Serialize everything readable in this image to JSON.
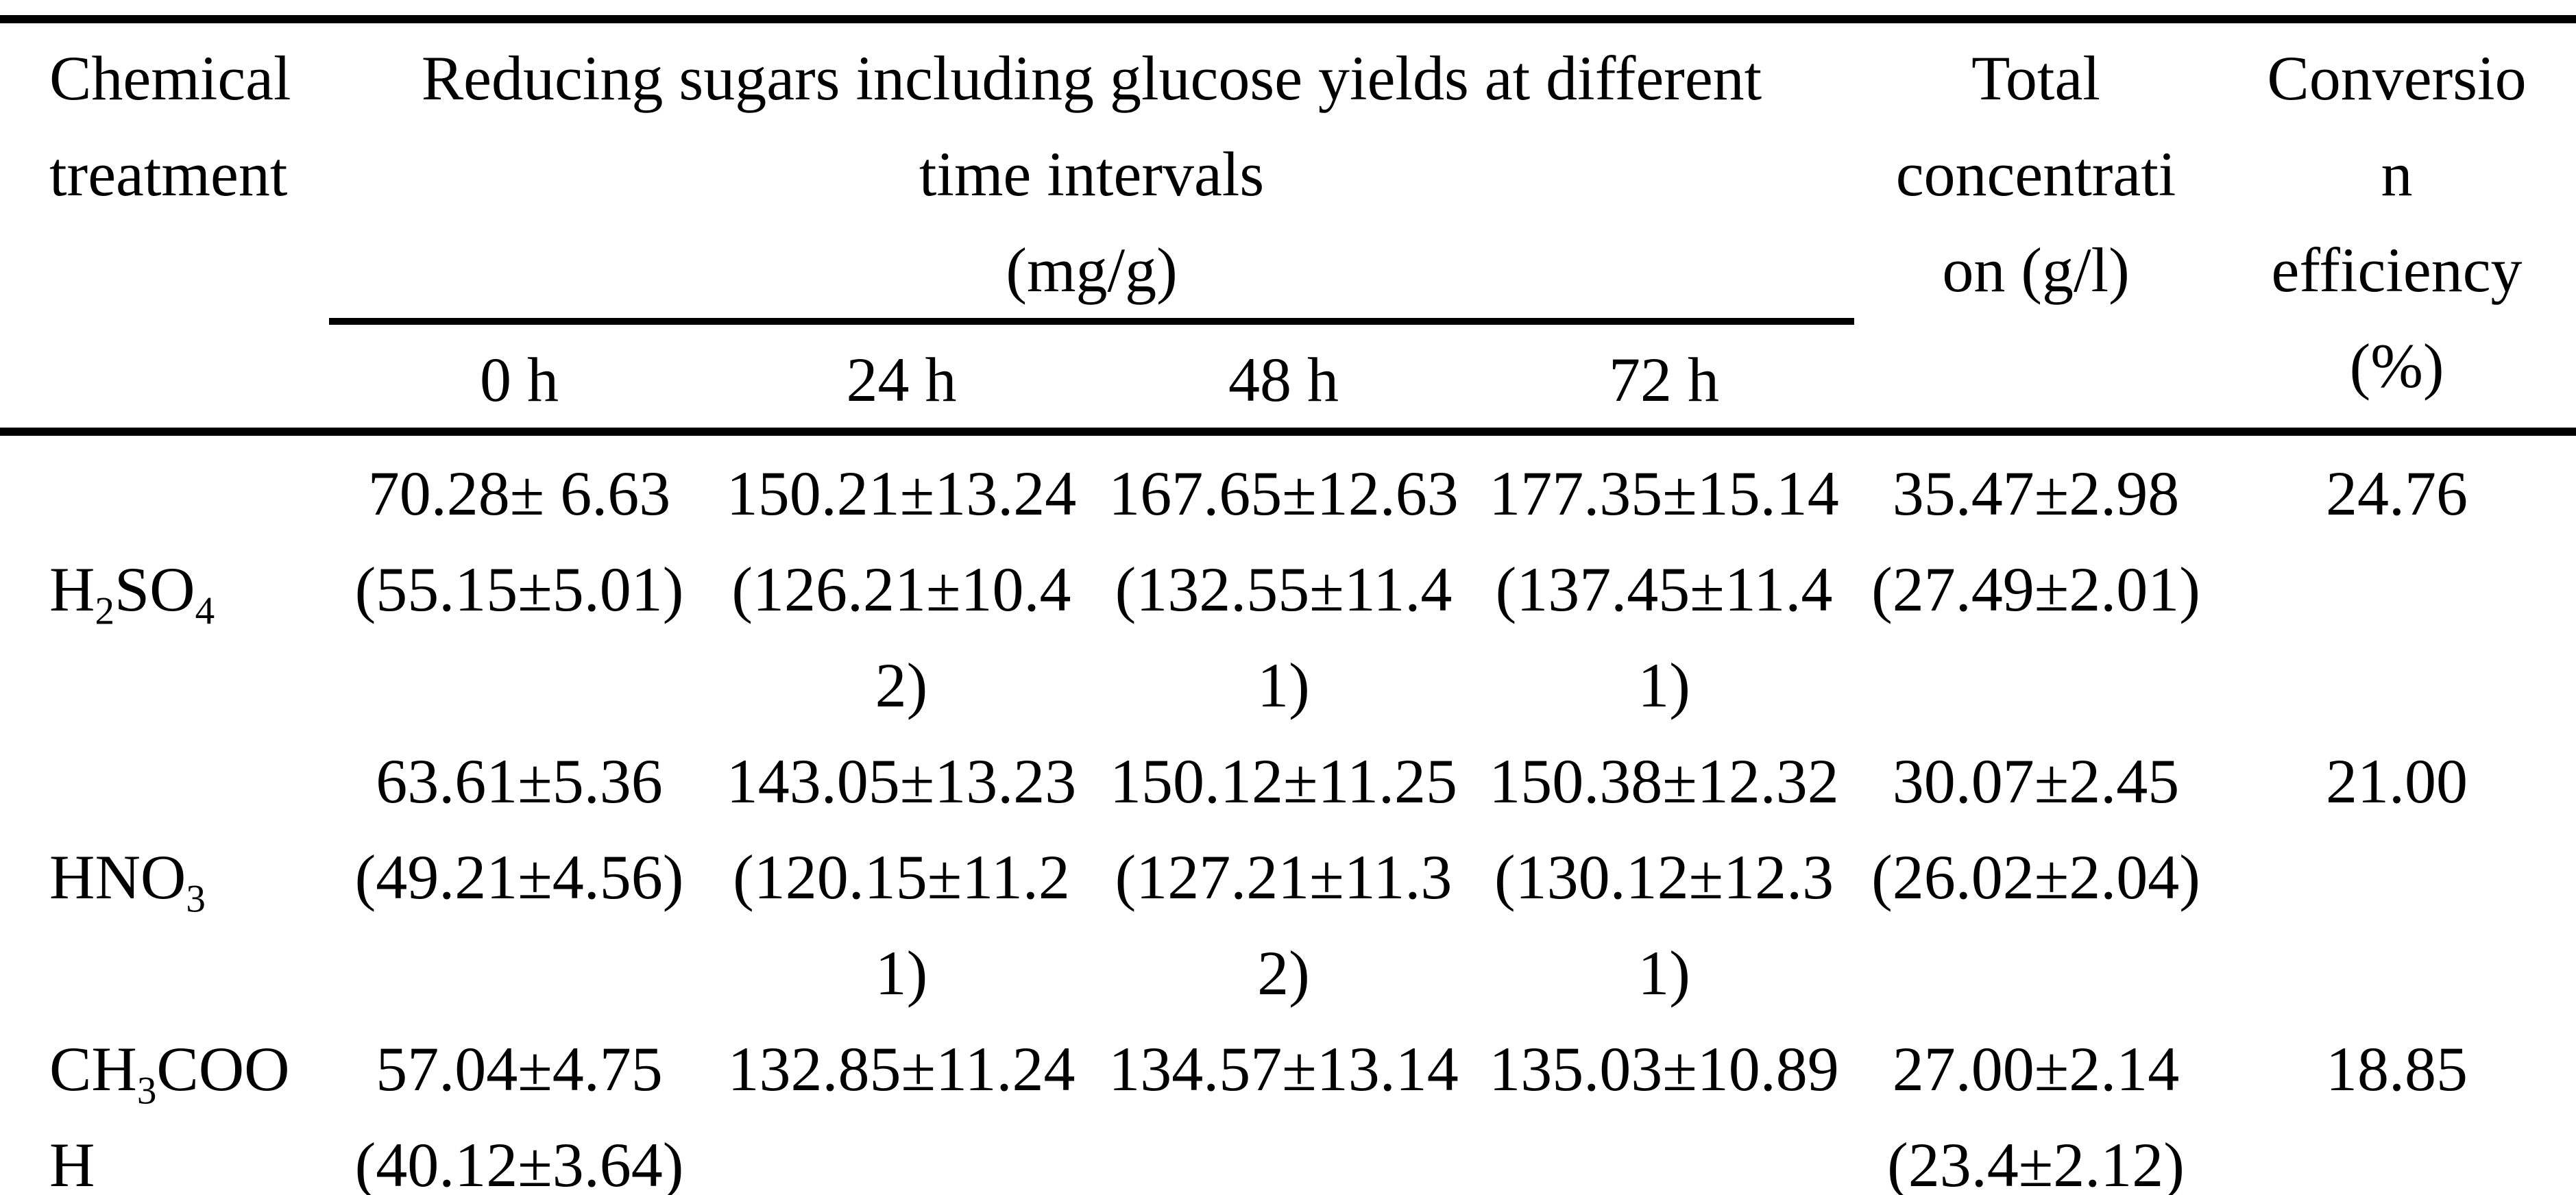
{
  "page": {
    "background_color": "#ffffff",
    "text_color": "#000000",
    "rule_color": "#000000"
  },
  "table": {
    "header": {
      "treatment_lines": [
        "Chemical",
        "treatment"
      ],
      "group_lines": [
        "Reducing sugars including glucose yields at different",
        "time intervals",
        "(mg/g)"
      ],
      "time_columns": [
        "0 h",
        "24 h",
        "48 h",
        "72 h"
      ],
      "total_lines": [
        "Total",
        "concentrati",
        "on (g/l)"
      ],
      "conversion_lines": [
        "Conversio",
        "n",
        "efficiency",
        "(%)"
      ]
    },
    "rows": [
      {
        "treatment_lines": [
          "H~2~SO~4~"
        ],
        "h0_lines": [
          "70.28± 6.63",
          "(55.15±5.01)"
        ],
        "h24_lines": [
          "150.21±13.24",
          "(126.21±10.4",
          "2)"
        ],
        "h48_lines": [
          "167.65±12.63",
          "(132.55±11.4",
          "1)"
        ],
        "h72_lines": [
          "177.35±15.14",
          "(137.45±11.4",
          "1)"
        ],
        "total_lines": [
          "35.47±2.98",
          "(27.49±2.01)"
        ],
        "conversion_lines": [
          "24.76"
        ]
      },
      {
        "treatment_lines": [
          "HNO~3~"
        ],
        "h0_lines": [
          "63.61±5.36",
          "(49.21±4.56)"
        ],
        "h24_lines": [
          "143.05±13.23",
          "(120.15±11.2",
          "1)"
        ],
        "h48_lines": [
          "150.12±11.25",
          "(127.21±11.3",
          "2)"
        ],
        "h72_lines": [
          "150.38±12.32",
          "(130.12±12.3",
          "1)"
        ],
        "total_lines": [
          "30.07±2.45",
          "(26.02±2.04)"
        ],
        "conversion_lines": [
          "21.00"
        ]
      },
      {
        "treatment_lines": [
          "CH~3~COO",
          "H"
        ],
        "h0_lines": [
          "57.04±4.75",
          "(40.12±3.64)"
        ],
        "h24_lines": [
          "132.85±11.24"
        ],
        "h48_lines": [
          "134.57±13.14"
        ],
        "h72_lines": [
          "135.03±10.89"
        ],
        "total_lines": [
          "27.00±2.14",
          "(23.4±2.12)"
        ],
        "conversion_lines": [
          "18.85"
        ]
      }
    ]
  }
}
